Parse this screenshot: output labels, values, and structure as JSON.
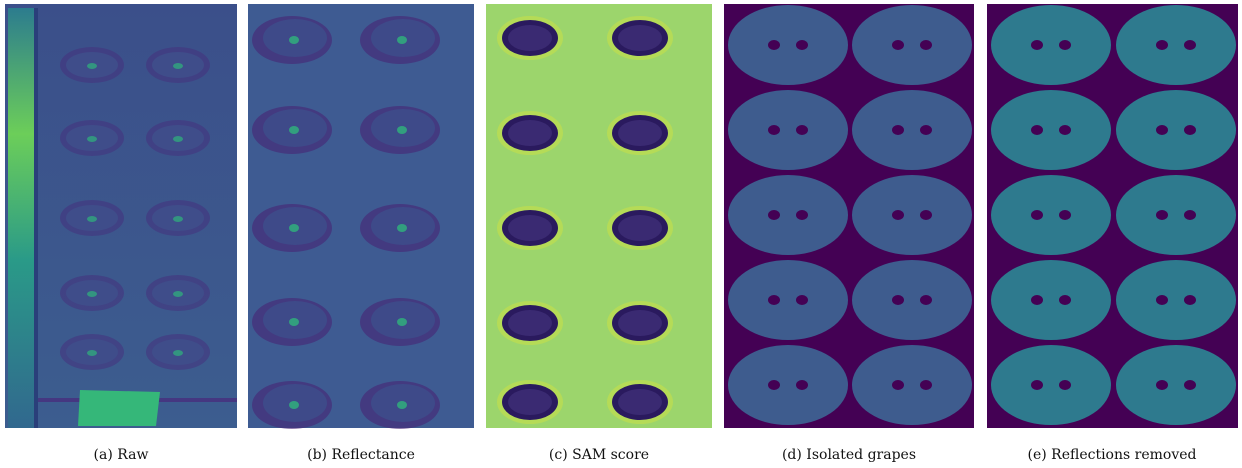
{
  "figure": {
    "panels": [
      {
        "caption": "(a) Raw"
      },
      {
        "caption": "(b) Reflectance"
      },
      {
        "caption": "(c) SAM score"
      },
      {
        "caption": "(d) Isolated grapes"
      },
      {
        "caption": "(e) Reflections removed"
      }
    ]
  }
}
